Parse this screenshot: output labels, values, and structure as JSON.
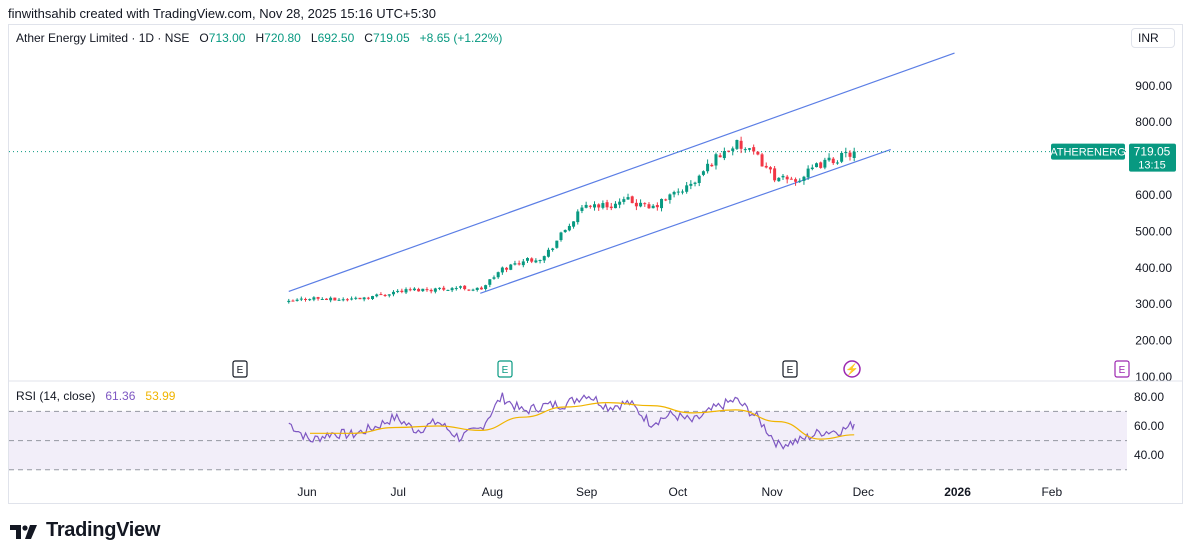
{
  "header": {
    "attribution": "finwithsahib created with TradingView.com, Nov 28, 2025 15:16 UTC+5:30"
  },
  "legend": {
    "symbol": "Ather Energy Limited · 1D · NSE",
    "o_label": "O",
    "o_value": "713.00",
    "h_label": "H",
    "h_value": "720.80",
    "l_label": "L",
    "l_value": "692.50",
    "c_label": "C",
    "c_value": "719.05",
    "change": "+8.65 (+1.22%)"
  },
  "currency": "INR",
  "price_tag": {
    "symbol": "ATHERENERG",
    "price": "719.05",
    "countdown": "13:15"
  },
  "rsi_legend": {
    "title": "RSI (14, close)",
    "rsi_value": "61.36",
    "ma_value": "53.99"
  },
  "event_markers": [
    "E",
    "E",
    "E",
    "⚡",
    "E"
  ],
  "colors": {
    "up": "#089981",
    "down": "#f23645",
    "channel": "#5b7ee5",
    "rsi": "#7e57c2",
    "rsi_ma": "#f0b400",
    "rsi_band": "#7e57c2",
    "price_line": "#089981"
  },
  "logo": {
    "text": "TradingView"
  },
  "chart_data": [
    {
      "type": "candlestick",
      "title": "Ather Energy Limited · 1D · NSE",
      "x_ticks": [
        "Jun",
        "Jul",
        "Aug",
        "Sep",
        "Oct",
        "Nov",
        "Dec",
        "2026",
        "Feb"
      ],
      "y_ticks": [
        "100.00",
        "200.00",
        "300.00",
        "400.00",
        "500.00",
        "600.00",
        "700.00",
        "800.00",
        "900.00"
      ],
      "ylim": [
        100,
        1000
      ],
      "last_price": 719.05,
      "close_series": [
        {
          "date": "2025-05-26",
          "close": 305
        },
        {
          "date": "2025-06-02",
          "close": 318
        },
        {
          "date": "2025-06-09",
          "close": 312
        },
        {
          "date": "2025-06-16",
          "close": 315
        },
        {
          "date": "2025-06-23",
          "close": 322
        },
        {
          "date": "2025-06-30",
          "close": 335
        },
        {
          "date": "2025-07-07",
          "close": 340
        },
        {
          "date": "2025-07-14",
          "close": 342
        },
        {
          "date": "2025-07-21",
          "close": 346
        },
        {
          "date": "2025-07-28",
          "close": 340
        },
        {
          "date": "2025-08-04",
          "close": 395
        },
        {
          "date": "2025-08-11",
          "close": 420
        },
        {
          "date": "2025-08-18",
          "close": 430
        },
        {
          "date": "2025-08-25",
          "close": 505
        },
        {
          "date": "2025-09-01",
          "close": 575
        },
        {
          "date": "2025-09-08",
          "close": 570
        },
        {
          "date": "2025-09-15",
          "close": 585
        },
        {
          "date": "2025-09-22",
          "close": 560
        },
        {
          "date": "2025-09-29",
          "close": 600
        },
        {
          "date": "2025-10-06",
          "close": 630
        },
        {
          "date": "2025-10-13",
          "close": 700
        },
        {
          "date": "2025-10-20",
          "close": 740
        },
        {
          "date": "2025-10-27",
          "close": 705
        },
        {
          "date": "2025-11-03",
          "close": 640
        },
        {
          "date": "2025-11-10",
          "close": 645
        },
        {
          "date": "2025-11-17",
          "close": 685
        },
        {
          "date": "2025-11-24",
          "close": 705
        },
        {
          "date": "2025-11-28",
          "close": 719
        }
      ],
      "channel": {
        "upper": [
          {
            "date": "2025-05-26",
            "value": 335
          },
          {
            "date": "2025-12-31",
            "value": 990
          }
        ],
        "lower": [
          {
            "date": "2025-07-28",
            "value": 330
          },
          {
            "date": "2025-12-10",
            "value": 725
          }
        ]
      }
    },
    {
      "type": "line",
      "title": "RSI (14, close)",
      "y_ticks": [
        "40.00",
        "60.00",
        "80.00"
      ],
      "ylim": [
        30,
        85
      ],
      "bands": [
        30,
        50,
        70
      ],
      "series": [
        {
          "name": "RSI",
          "values": [
            {
              "date": "2025-05-26",
              "value": 62
            },
            {
              "date": "2025-06-02",
              "value": 50
            },
            {
              "date": "2025-06-09",
              "value": 55
            },
            {
              "date": "2025-06-16",
              "value": 54
            },
            {
              "date": "2025-06-23",
              "value": 59
            },
            {
              "date": "2025-06-30",
              "value": 66
            },
            {
              "date": "2025-07-07",
              "value": 57
            },
            {
              "date": "2025-07-14",
              "value": 63
            },
            {
              "date": "2025-07-21",
              "value": 52
            },
            {
              "date": "2025-07-28",
              "value": 58
            },
            {
              "date": "2025-08-04",
              "value": 80
            },
            {
              "date": "2025-08-11",
              "value": 70
            },
            {
              "date": "2025-08-18",
              "value": 74
            },
            {
              "date": "2025-08-25",
              "value": 75
            },
            {
              "date": "2025-09-01",
              "value": 82
            },
            {
              "date": "2025-09-08",
              "value": 73
            },
            {
              "date": "2025-09-15",
              "value": 76
            },
            {
              "date": "2025-09-22",
              "value": 62
            },
            {
              "date": "2025-09-29",
              "value": 68
            },
            {
              "date": "2025-10-06",
              "value": 63
            },
            {
              "date": "2025-10-13",
              "value": 72
            },
            {
              "date": "2025-10-20",
              "value": 78
            },
            {
              "date": "2025-10-27",
              "value": 66
            },
            {
              "date": "2025-11-03",
              "value": 47
            },
            {
              "date": "2025-11-10",
              "value": 50
            },
            {
              "date": "2025-11-17",
              "value": 56
            },
            {
              "date": "2025-11-24",
              "value": 57
            },
            {
              "date": "2025-11-28",
              "value": 61.36
            }
          ]
        },
        {
          "name": "RSI-based MA",
          "values": [
            {
              "date": "2025-06-02",
              "value": 55
            },
            {
              "date": "2025-06-16",
              "value": 55
            },
            {
              "date": "2025-06-30",
              "value": 59
            },
            {
              "date": "2025-07-14",
              "value": 60
            },
            {
              "date": "2025-07-28",
              "value": 57
            },
            {
              "date": "2025-08-11",
              "value": 66
            },
            {
              "date": "2025-08-25",
              "value": 73
            },
            {
              "date": "2025-09-08",
              "value": 76
            },
            {
              "date": "2025-09-22",
              "value": 74
            },
            {
              "date": "2025-10-06",
              "value": 69
            },
            {
              "date": "2025-10-20",
              "value": 71
            },
            {
              "date": "2025-11-03",
              "value": 63
            },
            {
              "date": "2025-11-17",
              "value": 51
            },
            {
              "date": "2025-11-28",
              "value": 53.99
            }
          ]
        }
      ]
    }
  ]
}
